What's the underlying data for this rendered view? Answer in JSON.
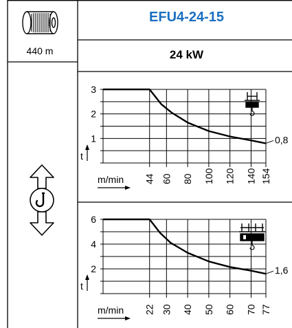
{
  "header": {
    "model": "EFU4-24-15",
    "power": "24 kW",
    "rope_length": "440 m"
  },
  "icons": {
    "rope_drum": "rope-drum-icon",
    "hook_hoist": "hook-hoist-icon",
    "single_gripper": "single-gripper-icon",
    "double_gripper": "double-gripper-icon"
  },
  "chart_data": [
    {
      "type": "line",
      "title": "",
      "xlabel": "m/min",
      "ylabel": "t",
      "x_ticks": [
        "44",
        "60",
        "80",
        "100",
        "120",
        "140",
        "154"
      ],
      "x_tick_values": [
        44,
        60,
        80,
        100,
        120,
        140,
        154
      ],
      "y_ticks": [
        "1",
        "2",
        "3"
      ],
      "y_tick_values": [
        1,
        2,
        3
      ],
      "ylim": [
        0,
        3
      ],
      "xlim": [
        0,
        154
      ],
      "end_label": "0,8",
      "grid": true,
      "series": [
        {
          "x": [
            0,
            44,
            55,
            65,
            80,
            100,
            120,
            140,
            154
          ],
          "y": [
            3,
            3,
            2.4,
            2.05,
            1.65,
            1.3,
            1.08,
            0.92,
            0.8
          ]
        }
      ]
    },
    {
      "type": "line",
      "title": "",
      "xlabel": "m/min",
      "ylabel": "t",
      "x_ticks": [
        "22",
        "30",
        "40",
        "50",
        "60",
        "70",
        "77"
      ],
      "x_tick_values": [
        22,
        30,
        40,
        50,
        60,
        70,
        77
      ],
      "y_ticks": [
        "2",
        "4",
        "6"
      ],
      "y_tick_values": [
        2,
        4,
        6
      ],
      "ylim": [
        0,
        6
      ],
      "xlim": [
        0,
        77
      ],
      "end_label": "1,6",
      "grid": true,
      "series": [
        {
          "x": [
            0,
            22,
            27,
            32,
            40,
            50,
            60,
            70,
            77
          ],
          "y": [
            6,
            6,
            4.9,
            4.1,
            3.3,
            2.6,
            2.15,
            1.85,
            1.6
          ]
        }
      ]
    }
  ]
}
